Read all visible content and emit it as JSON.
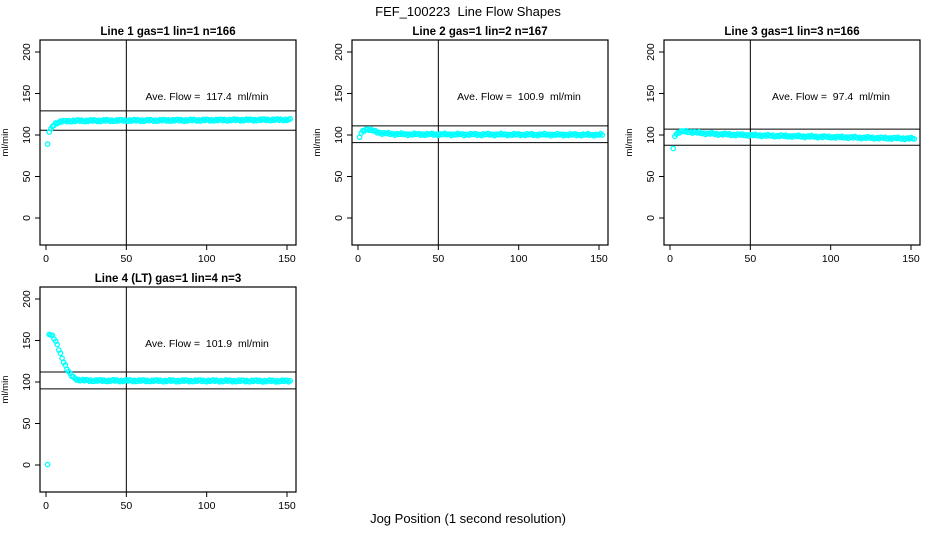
{
  "title": "FEF_100223  Line Flow Shapes",
  "xlabel": "Jog Position (1 second resolution)",
  "ylabel": "ml/min",
  "point_color": "#00ffff",
  "axis_color": "#000000",
  "chart_data": [
    {
      "type": "scatter",
      "title": "Line 1 gas=1 lin=1 n=166",
      "n": 166,
      "ave_flow": 117.4,
      "ave_flow_label": "Ave. Flow =  117.4  ml/min",
      "hline_upper": 129.1,
      "hline_lower": 105.7,
      "vline_x": 50,
      "xlim": [
        -4,
        156
      ],
      "ylim": [
        -33,
        215
      ],
      "xticks": [
        0,
        50,
        100,
        150
      ],
      "yticks": [
        0,
        50,
        100,
        150,
        200
      ],
      "points": [
        [
          1,
          88
        ],
        [
          2,
          104
        ],
        [
          3,
          106.5
        ],
        [
          4,
          110
        ],
        [
          5,
          112.5
        ],
        [
          6,
          114
        ],
        [
          7,
          115
        ],
        [
          8,
          115.7
        ],
        [
          9,
          116
        ],
        [
          10,
          116.3
        ],
        [
          12,
          116.6
        ],
        [
          15,
          116.9
        ],
        [
          20,
          117.1
        ],
        [
          25,
          117.2
        ],
        [
          30,
          117.3
        ],
        [
          40,
          117.4
        ],
        [
          50,
          117.5
        ],
        [
          60,
          117.5
        ],
        [
          70,
          117.6
        ],
        [
          80,
          117.7
        ],
        [
          90,
          117.8
        ],
        [
          100,
          117.9
        ],
        [
          110,
          118
        ],
        [
          120,
          118.1
        ],
        [
          130,
          118.2
        ],
        [
          140,
          118.3
        ],
        [
          152,
          118.4
        ]
      ]
    },
    {
      "type": "scatter",
      "title": "Line 2 gas=1 lin=2 n=167",
      "n": 167,
      "ave_flow": 100.9,
      "ave_flow_label": "Ave. Flow =  100.9  ml/min",
      "hline_upper": 111.0,
      "hline_lower": 90.8,
      "vline_x": 50,
      "xlim": [
        -4,
        156
      ],
      "ylim": [
        -33,
        215
      ],
      "xticks": [
        0,
        50,
        100,
        150
      ],
      "yticks": [
        0,
        50,
        100,
        150,
        200
      ],
      "points": [
        [
          1,
          97.5
        ],
        [
          2,
          102
        ],
        [
          3,
          104.5
        ],
        [
          4,
          106
        ],
        [
          5,
          106.8
        ],
        [
          6,
          107
        ],
        [
          7,
          106.6
        ],
        [
          8,
          106
        ],
        [
          9,
          105.3
        ],
        [
          10,
          104.6
        ],
        [
          12,
          103.4
        ],
        [
          15,
          102.2
        ],
        [
          20,
          101.4
        ],
        [
          25,
          101.1
        ],
        [
          30,
          100.9
        ],
        [
          40,
          100.8
        ],
        [
          60,
          100.7
        ],
        [
          80,
          100.6
        ],
        [
          100,
          100.5
        ],
        [
          120,
          100.4
        ],
        [
          140,
          100.3
        ],
        [
          152,
          100.3
        ]
      ]
    },
    {
      "type": "scatter",
      "title": "Line 3 gas=1 lin=3 n=166",
      "n": 166,
      "ave_flow": 97.4,
      "ave_flow_label": "Ave. Flow =  97.4  ml/min",
      "hline_upper": 107.1,
      "hline_lower": 87.7,
      "vline_x": 50,
      "xlim": [
        -4,
        156
      ],
      "ylim": [
        -33,
        215
      ],
      "xticks": [
        0,
        50,
        100,
        150
      ],
      "yticks": [
        0,
        50,
        100,
        150,
        200
      ],
      "points": [
        [
          2,
          83
        ],
        [
          3,
          99.5
        ],
        [
          4,
          101.5
        ],
        [
          5,
          102.8
        ],
        [
          6,
          103.5
        ],
        [
          8,
          104.2
        ],
        [
          10,
          104.2
        ],
        [
          12,
          103.8
        ],
        [
          15,
          103.2
        ],
        [
          20,
          102.3
        ],
        [
          25,
          101.6
        ],
        [
          30,
          101.1
        ],
        [
          40,
          100.4
        ],
        [
          50,
          99.8
        ],
        [
          60,
          99.3
        ],
        [
          70,
          98.8
        ],
        [
          80,
          98.4
        ],
        [
          90,
          98
        ],
        [
          100,
          97.6
        ],
        [
          110,
          97.2
        ],
        [
          120,
          96.8
        ],
        [
          130,
          96.4
        ],
        [
          140,
          96.1
        ],
        [
          152,
          95.7
        ]
      ]
    },
    {
      "type": "scatter",
      "title": "Line 4 (LT) gas=1 lin=4 n=3",
      "n": 3,
      "ave_flow": 101.9,
      "ave_flow_label": "Ave. Flow =  101.9  ml/min",
      "hline_upper": 112.1,
      "hline_lower": 91.7,
      "vline_x": 50,
      "xlim": [
        -4,
        156
      ],
      "ylim": [
        -33,
        215
      ],
      "xticks": [
        0,
        50,
        100,
        150
      ],
      "yticks": [
        0,
        50,
        100,
        150,
        200
      ],
      "points": [
        [
          1,
          0
        ],
        [
          2,
          158
        ],
        [
          3,
          157.5
        ],
        [
          4,
          155.5
        ],
        [
          5,
          152.5
        ],
        [
          6,
          148.5
        ],
        [
          7,
          144
        ],
        [
          8,
          139
        ],
        [
          9,
          134
        ],
        [
          10,
          129
        ],
        [
          11,
          124.5
        ],
        [
          12,
          120
        ],
        [
          13,
          116
        ],
        [
          14,
          112.5
        ],
        [
          15,
          109.5
        ],
        [
          16,
          107.3
        ],
        [
          17,
          105.6
        ],
        [
          18,
          104.3
        ],
        [
          19,
          103.4
        ],
        [
          20,
          102.8
        ],
        [
          22,
          102.2
        ],
        [
          25,
          101.9
        ],
        [
          30,
          101.7
        ],
        [
          40,
          101.6
        ],
        [
          60,
          101.5
        ],
        [
          80,
          101.4
        ],
        [
          100,
          101.4
        ],
        [
          120,
          101.3
        ],
        [
          140,
          101.2
        ],
        [
          152,
          101.2
        ]
      ]
    }
  ]
}
